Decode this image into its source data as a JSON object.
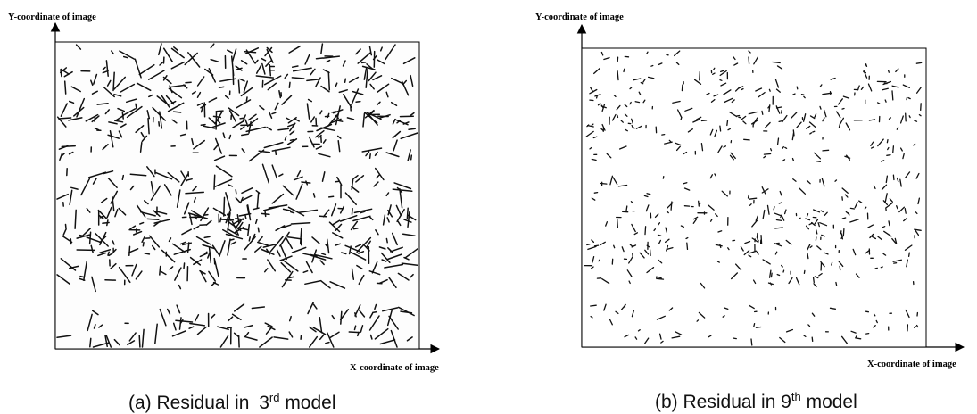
{
  "chart_data": [
    {
      "type": "vector-field",
      "ylabel": "Y-coordinate of image",
      "xlabel": "X-coordinate of image",
      "caption": "(a) Residual in 3rd model",
      "caption_main": "(a) Residual in ",
      "caption_num": "3",
      "caption_sup": "rd",
      "caption_tail": " model",
      "vector_magnitude": "large",
      "grid": false,
      "legend": "none"
    },
    {
      "type": "vector-field",
      "ylabel": "Y-coordinate of image",
      "xlabel": "X-coordinate of image",
      "caption": "(b) Residual in 9th model",
      "caption_main": "(b) Residual in 9",
      "caption_num": "",
      "caption_sup": "th",
      "caption_tail": " model",
      "vector_magnitude": "small",
      "grid": false,
      "legend": "none"
    }
  ]
}
